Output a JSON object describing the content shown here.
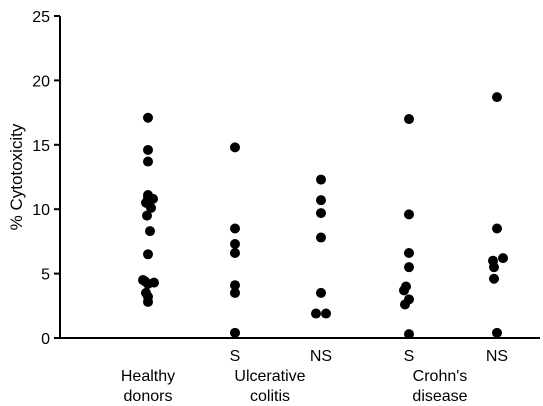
{
  "chart_data": {
    "type": "scatter",
    "title": "",
    "ylabel": "% Cytotoxicity",
    "ylim": [
      0,
      25
    ],
    "yticks": [
      "0",
      "5",
      "10",
      "15",
      "20",
      "25"
    ],
    "grid": false,
    "legend": "none",
    "point_color": "#000000",
    "groups": [
      {
        "name_lines": [
          "Healthy",
          "donors"
        ],
        "subgroups": [
          {
            "label": "",
            "values": [
              17.1,
              14.6,
              13.7,
              11.1,
              10.9,
              10.8,
              10.5,
              10.1,
              9.5,
              8.3,
              6.5,
              4.5,
              4.4,
              4.3,
              4.2,
              3.5,
              3.2,
              2.8
            ]
          }
        ]
      },
      {
        "name_lines": [
          "Ulcerative",
          "colitis"
        ],
        "subgroups": [
          {
            "label": "S",
            "values": [
              14.8,
              8.5,
              7.3,
              6.6,
              4.1,
              3.5,
              0.4
            ]
          },
          {
            "label": "NS",
            "values": [
              12.3,
              10.7,
              9.7,
              7.8,
              3.5,
              1.9,
              1.9
            ]
          }
        ]
      },
      {
        "name_lines": [
          "Crohn's",
          "disease"
        ],
        "subgroups": [
          {
            "label": "S",
            "values": [
              17.0,
              9.6,
              6.6,
              5.5,
              4.0,
              3.7,
              3.0,
              2.6,
              0.3
            ]
          },
          {
            "label": "NS",
            "values": [
              18.7,
              8.5,
              6.2,
              6.0,
              5.5,
              4.6,
              0.4
            ]
          }
        ]
      }
    ]
  }
}
